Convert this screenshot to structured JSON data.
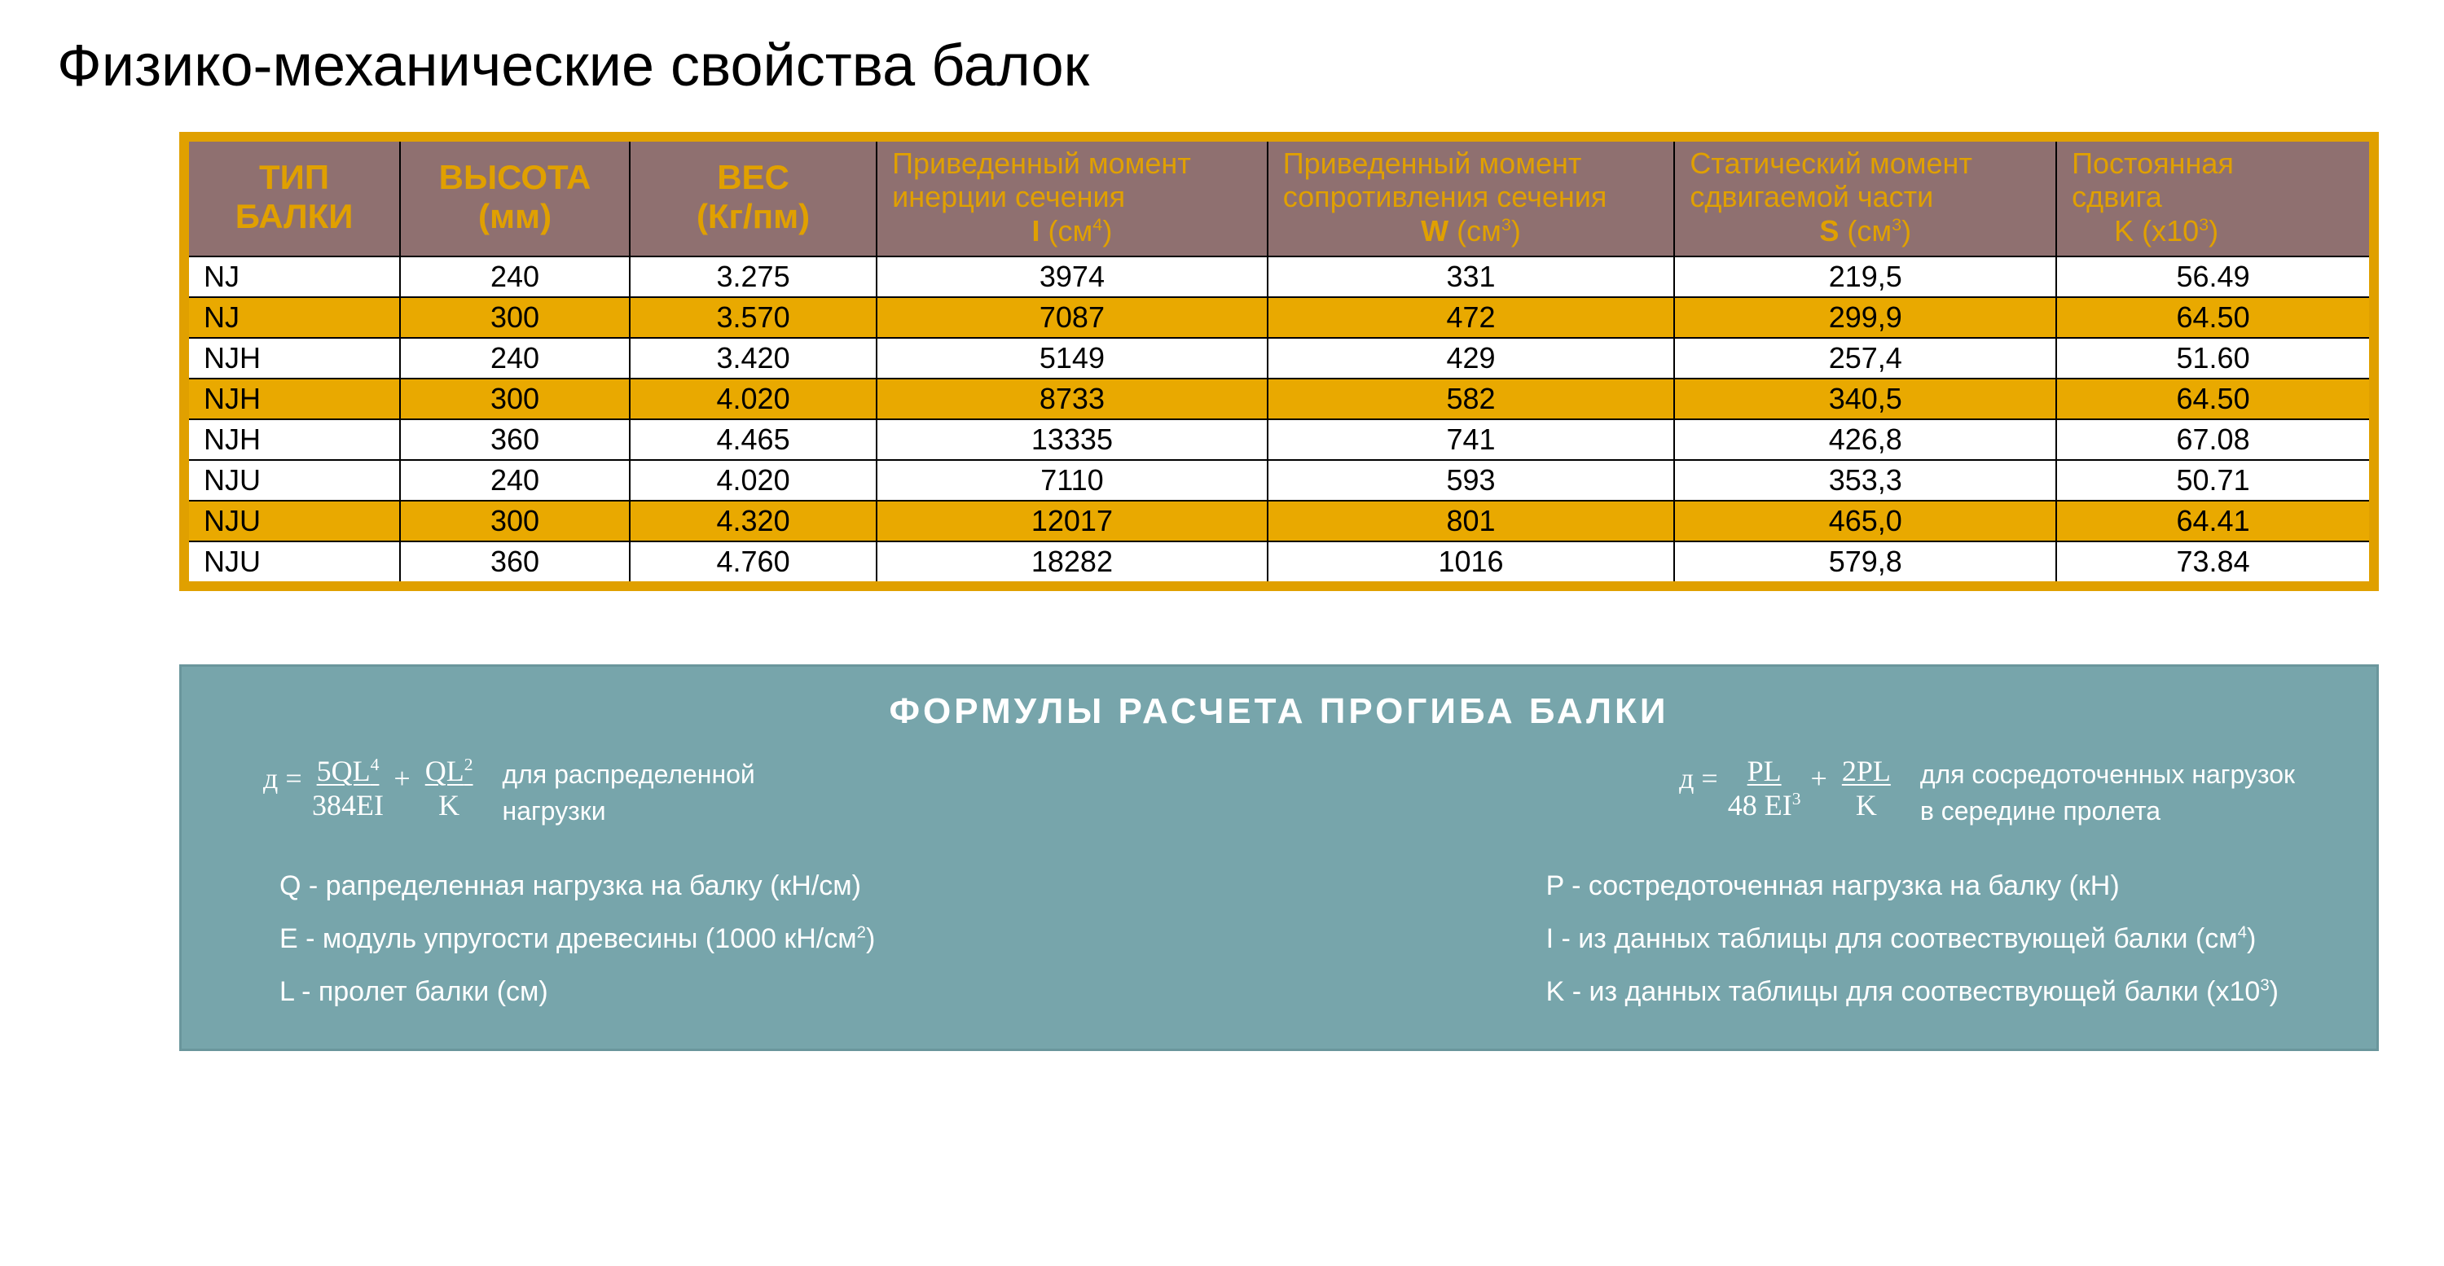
{
  "title": "Физико-механические свойства балок",
  "table": {
    "outer_border_color": "#e0a000",
    "cell_border_color": "#000000",
    "header_bg": "#8f7070",
    "header_fg": "#e0a000",
    "row_stripe_color": "#e9a900",
    "row_plain_color": "#ffffff",
    "columns": [
      {
        "line1": "ТИП",
        "line2": "БАЛКИ",
        "class": "col1",
        "bold": true
      },
      {
        "line1": "ВЫСОТА",
        "line2": "(мм)",
        "class": "col2",
        "bold": true
      },
      {
        "line1": "ВЕС",
        "line2": "(Кг/пм)",
        "class": "col3",
        "bold": true
      },
      {
        "plain1": "Приведенный момент",
        "plain2": "инерции сечения",
        "unit_html": "<b>I</b> (см<sup>4</sup>)",
        "class": "col4"
      },
      {
        "plain1": "Приведенный момент",
        "plain2": "сопротивления сечения",
        "unit_html": "<b>W</b> (см<sup>3</sup>)",
        "class": "col5"
      },
      {
        "plain1": "Статический момент",
        "plain2": "сдвигаемой части",
        "unit_html": "<b>S</b> (см<sup>3</sup>)",
        "class": "col6"
      },
      {
        "plain1": "Постоянная",
        "plain2": "сдвига",
        "unit_html": "K (x10<sup>3</sup>)",
        "class": "col7",
        "left_align": true
      }
    ],
    "rows": [
      {
        "cells": [
          "NJ",
          "240",
          "3.275",
          "3974",
          "331",
          "219,5",
          "56.49"
        ],
        "stripe": false
      },
      {
        "cells": [
          "NJ",
          "300",
          "3.570",
          "7087",
          "472",
          "299,9",
          "64.50"
        ],
        "stripe": true
      },
      {
        "cells": [
          "NJH",
          "240",
          "3.420",
          "5149",
          "429",
          "257,4",
          "51.60"
        ],
        "stripe": false
      },
      {
        "cells": [
          "NJH",
          "300",
          "4.020",
          "8733",
          "582",
          "340,5",
          "64.50"
        ],
        "stripe": true
      },
      {
        "cells": [
          "NJH",
          "360",
          "4.465",
          "13335",
          "741",
          "426,8",
          "67.08"
        ],
        "stripe": false
      },
      {
        "cells": [
          "NJU",
          "240",
          "4.020",
          "7110",
          "593",
          "353,3",
          "50.71"
        ],
        "stripe": false
      },
      {
        "cells": [
          "NJU",
          "300",
          "4.320",
          "12017",
          "801",
          "465,0",
          "64.41"
        ],
        "stripe": true
      },
      {
        "cells": [
          "NJU",
          "360",
          "4.760",
          "18282",
          "1016",
          "579,8",
          "73.84"
        ],
        "stripe": false
      }
    ]
  },
  "panel": {
    "bg": "#77a5ab",
    "border": "#6a969c",
    "title": "ФОРМУЛЫ РАСЧЕТА ПРОГИБА БАЛКИ",
    "formula1": {
      "lhs": "д =",
      "t1_num": "5QL<sup>4</sup>",
      "t1_den": "384EI",
      "plus": "+",
      "t2_num": "QL<sup>2</sup>",
      "t2_den": "K",
      "desc": "для распределенной<br>нагрузки"
    },
    "formula2": {
      "lhs": "д =",
      "t1_num": "PL",
      "t1_den": "48 EI<sup>3</sup>",
      "plus": "+",
      "t2_num": "2PL",
      "t2_den": "K",
      "desc": "для сосредоточенных нагрузок<br>в середине пролета"
    },
    "legend_left": [
      "Q - рапределенная нагрузка на балку (кН/см)",
      "E - модуль упругости древесины (1000 кН/см<sup>2</sup>)",
      "L - пролет балки (см)"
    ],
    "legend_right": [
      "P - состредоточенная нагрузка на балку (кН)",
      "I - из данных таблицы для соотвествующей балки (см<sup>4</sup>)",
      "K - из данных таблицы для соотвествующей балки  (x10<sup>3</sup>)"
    ]
  }
}
